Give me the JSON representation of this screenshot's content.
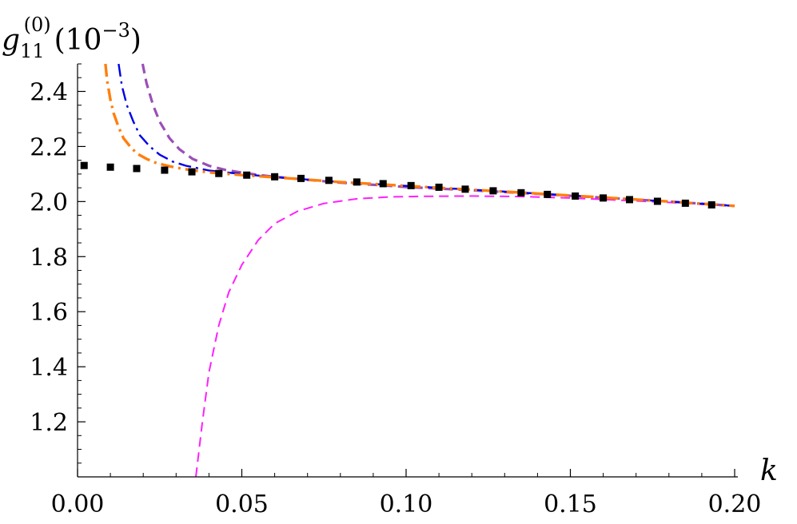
{
  "chart_data": {
    "type": "line",
    "xlabel": "k",
    "ylabel": {
      "symbol": "g",
      "superscript": "(0)",
      "subscript": "11",
      "unit_prefix": "(10",
      "unit_exponent": "−3",
      "unit_suffix": ")"
    },
    "xlim": [
      0.0,
      0.2
    ],
    "ylim": [
      1.0,
      2.5
    ],
    "grid": false,
    "x_major_ticks": [
      {
        "value": 0.0,
        "label": "0.00"
      },
      {
        "value": 0.05,
        "label": "0.05"
      },
      {
        "value": 0.1,
        "label": "0.10"
      },
      {
        "value": 0.15,
        "label": "0.15"
      },
      {
        "value": 0.2,
        "label": "0.20"
      }
    ],
    "y_major_ticks": [
      {
        "value": 1.2,
        "label": "1.2"
      },
      {
        "value": 1.4,
        "label": "1.4"
      },
      {
        "value": 1.6,
        "label": "1.6"
      },
      {
        "value": 1.8,
        "label": "1.8"
      },
      {
        "value": 2.0,
        "label": "2.0"
      },
      {
        "value": 2.2,
        "label": "2.2"
      },
      {
        "value": 2.4,
        "label": "2.4"
      }
    ],
    "series": [
      {
        "style": "dotted-squares",
        "color": "#000000",
        "x": [
          0.002,
          0.01,
          0.018,
          0.0265,
          0.0348,
          0.043,
          0.0515,
          0.06,
          0.068,
          0.0765,
          0.085,
          0.093,
          0.1015,
          0.11,
          0.118,
          0.1265,
          0.135,
          0.143,
          0.1515,
          0.16,
          0.168,
          0.1765,
          0.185,
          0.193
        ],
        "y": [
          2.131,
          2.125,
          2.12,
          2.114,
          2.108,
          2.102,
          2.096,
          2.09,
          2.084,
          2.077,
          2.071,
          2.065,
          2.058,
          2.052,
          2.045,
          2.039,
          2.032,
          2.026,
          2.02,
          2.013,
          2.007,
          2.001,
          1.994,
          1.988
        ]
      },
      {
        "style": "dashed",
        "color": "#ff1fff",
        "x": [
          0.036,
          0.038,
          0.04,
          0.043,
          0.046,
          0.05,
          0.055,
          0.06,
          0.067,
          0.075,
          0.085,
          0.095,
          0.105,
          0.12,
          0.135,
          0.15,
          0.165,
          0.18,
          0.2
        ],
        "y": [
          1.0,
          1.2,
          1.38,
          1.55,
          1.67,
          1.77,
          1.86,
          1.92,
          1.965,
          1.993,
          2.01,
          2.017,
          2.019,
          2.02,
          2.018,
          2.013,
          2.005,
          1.997,
          1.983
        ]
      },
      {
        "style": "dashed",
        "color": "#9b4fb6",
        "x": [
          0.0198,
          0.021,
          0.023,
          0.025,
          0.028,
          0.031,
          0.035,
          0.04,
          0.045,
          0.05,
          0.055,
          0.06,
          0.07,
          0.08,
          0.1,
          0.12,
          0.14,
          0.16,
          0.18,
          0.2
        ],
        "y": [
          2.5,
          2.43,
          2.35,
          2.29,
          2.23,
          2.19,
          2.155,
          2.13,
          2.115,
          2.105,
          2.097,
          2.09,
          2.079,
          2.069,
          2.053,
          2.041,
          2.028,
          2.014,
          2.0,
          1.984
        ]
      },
      {
        "style": "dash-dot",
        "color": "#0000e6",
        "x": [
          0.0125,
          0.0135,
          0.015,
          0.017,
          0.019,
          0.022,
          0.025,
          0.029,
          0.033,
          0.037,
          0.04,
          0.05,
          0.06,
          0.08,
          0.1,
          0.12,
          0.14,
          0.16,
          0.18,
          0.2
        ],
        "y": [
          2.5,
          2.42,
          2.35,
          2.29,
          2.24,
          2.2,
          2.17,
          2.145,
          2.13,
          2.12,
          2.113,
          2.1,
          2.089,
          2.071,
          2.057,
          2.043,
          2.029,
          2.015,
          2.0,
          1.984
        ]
      },
      {
        "style": "dash-dot",
        "color": "#ff7f0e",
        "x": [
          0.0085,
          0.009,
          0.01,
          0.011,
          0.0125,
          0.014,
          0.016,
          0.018,
          0.021,
          0.024,
          0.028,
          0.032,
          0.036,
          0.04,
          0.05,
          0.06,
          0.08,
          0.1,
          0.12,
          0.14,
          0.16,
          0.18,
          0.2
        ],
        "y": [
          2.5,
          2.44,
          2.37,
          2.32,
          2.27,
          2.23,
          2.2,
          2.175,
          2.155,
          2.14,
          2.128,
          2.119,
          2.112,
          2.106,
          2.096,
          2.088,
          2.071,
          2.057,
          2.043,
          2.029,
          2.015,
          2.0,
          1.984
        ]
      }
    ]
  }
}
